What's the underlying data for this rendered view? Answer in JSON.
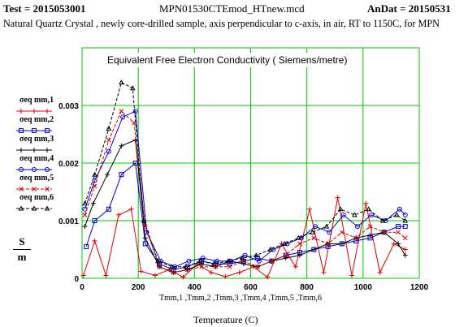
{
  "header": {
    "test": "Test = 2015053001",
    "file": "MPN01530CTEmod_HTnew.mcd",
    "andat": "AnDat = 20150531"
  },
  "description": "Natural Quartz Crystal , newly core-drilled sample, axis perpendicular to c-axis, in air, RT to 1150C, for MPN",
  "y_unit": {
    "top": "S",
    "bottom": "m"
  },
  "x_series_names": "Tmm,1 ,Tmm,2 ,Tmm,3 ,Tmm,4 ,Tmm,5 ,Tmm,6",
  "chart_data": {
    "type": "line",
    "title": "Equivalent Free Electron Conductivity ( Siemens/metre)",
    "xlabel": "Temperature (C)",
    "ylabel": "S/m",
    "xlim": [
      0,
      1200
    ],
    "ylim": [
      0,
      0.004
    ],
    "x_ticks": [
      0,
      200,
      400,
      600,
      800,
      1000,
      1200
    ],
    "y_ticks": [
      0,
      0.001,
      0.002,
      0.003
    ],
    "y_tick_labels": [
      "0",
      "0.001",
      "0.002",
      "0.003"
    ],
    "grid": true,
    "legend_position": "left",
    "series": [
      {
        "name": "σeq mm,1",
        "color": "#e00000",
        "marker": "plus",
        "x": [
          5,
          45,
          85,
          130,
          175,
          210,
          260,
          310,
          360,
          410,
          460,
          510,
          560,
          610,
          660,
          710,
          760,
          810,
          860,
          910,
          960,
          1010,
          1060,
          1110,
          1150
        ],
        "y": [
          5e-05,
          0.00065,
          5e-05,
          0.0011,
          0.0012,
          0.00012,
          5e-05,
          0.00015,
          2e-05,
          0.00025,
          0.0001,
          3e-05,
          0.0001,
          0.0002,
          2e-05,
          0.0006,
          0.0002,
          0.0012,
          0.0001,
          0.0014,
          5e-05,
          0.0013,
          0.0001,
          0.0006,
          0.0005
        ]
      },
      {
        "name": "σeq mm,2",
        "color": "#0000c8",
        "marker": "square",
        "x": [
          15,
          45,
          95,
          140,
          190,
          225,
          275,
          325,
          375,
          425,
          475,
          525,
          575,
          625,
          675,
          725,
          775,
          825,
          875,
          925,
          975,
          1025,
          1075,
          1125,
          1150
        ],
        "y": [
          0.00055,
          0.001,
          0.0012,
          0.0018,
          0.002,
          0.0006,
          0.00025,
          0.00015,
          0.0002,
          0.0003,
          0.00025,
          0.00025,
          0.0003,
          0.00035,
          0.0003,
          0.0004,
          0.00045,
          0.0005,
          0.00055,
          0.0006,
          0.00065,
          0.0007,
          0.0008,
          0.0009,
          0.0009
        ]
      },
      {
        "name": "σeq mm,3",
        "color": "#000000",
        "marker": "plus",
        "x": [
          10,
          40,
          90,
          140,
          190,
          225,
          275,
          325,
          375,
          425,
          475,
          525,
          575,
          625,
          675,
          725,
          775,
          825,
          875,
          925,
          975,
          1025,
          1075,
          1125,
          1150
        ],
        "y": [
          0.0009,
          0.0013,
          0.0018,
          0.0023,
          0.0024,
          0.0007,
          0.0002,
          0.0001,
          0.00015,
          0.00025,
          0.0002,
          0.0003,
          0.00025,
          0.0002,
          0.0003,
          0.00035,
          0.0004,
          0.0005,
          0.0006,
          0.0006,
          0.0007,
          0.00075,
          0.0008,
          0.0006,
          0.0004
        ]
      },
      {
        "name": "σeq mm,4",
        "color": "#0000c8",
        "marker": "circle",
        "x": [
          10,
          45,
          95,
          145,
          190,
          230,
          280,
          330,
          380,
          430,
          480,
          530,
          580,
          630,
          680,
          730,
          780,
          830,
          880,
          930,
          980,
          1030,
          1080,
          1130,
          1150
        ],
        "y": [
          0.0012,
          0.0017,
          0.0022,
          0.0028,
          0.0029,
          0.0008,
          0.0003,
          0.0002,
          0.0003,
          0.00035,
          0.0003,
          0.0003,
          0.0004,
          0.0003,
          0.0005,
          0.0006,
          0.0007,
          0.0009,
          0.0008,
          0.0011,
          0.0009,
          0.0011,
          0.001,
          0.0012,
          0.0011
        ]
      },
      {
        "name": "σeq mm,5",
        "color": "#d00000",
        "marker": "x",
        "x": [
          10,
          45,
          95,
          140,
          185,
          225,
          275,
          325,
          375,
          425,
          475,
          525,
          575,
          625,
          675,
          725,
          775,
          825,
          875,
          925,
          975,
          1025,
          1075,
          1125,
          1150
        ],
        "y": [
          0.0011,
          0.0016,
          0.0024,
          0.0029,
          0.0027,
          0.0009,
          0.0002,
          0.0001,
          0.00015,
          0.0002,
          0.0002,
          0.0002,
          0.0003,
          0.0002,
          0.0003,
          0.0004,
          0.0006,
          0.0007,
          0.0006,
          0.0008,
          0.0007,
          0.0009,
          0.0008,
          0.0008,
          0.0007
        ]
      },
      {
        "name": "σeq mm,6",
        "color": "#000000",
        "marker": "tri",
        "x": [
          10,
          45,
          95,
          140,
          180,
          220,
          270,
          320,
          370,
          420,
          470,
          520,
          570,
          620,
          670,
          720,
          770,
          820,
          870,
          920,
          970,
          1020,
          1070,
          1120,
          1150
        ],
        "y": [
          0.0013,
          0.0018,
          0.0026,
          0.0034,
          0.0033,
          0.001,
          0.0003,
          0.0002,
          0.0002,
          0.0003,
          0.00025,
          0.0003,
          0.00035,
          0.0004,
          0.0005,
          0.0006,
          0.0007,
          0.0008,
          0.0009,
          0.0012,
          0.0011,
          0.0012,
          0.001,
          0.0011,
          0.001
        ]
      }
    ]
  }
}
